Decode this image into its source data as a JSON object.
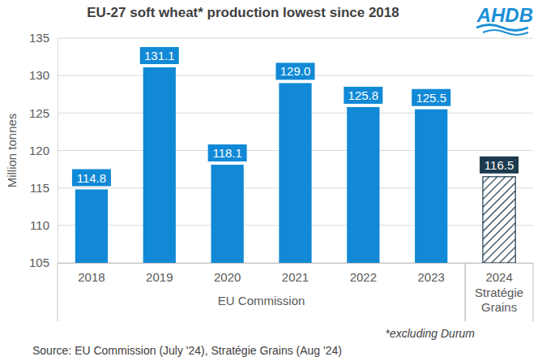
{
  "chart_data": {
    "type": "bar",
    "title": "EU-27 soft wheat* production lowest since 2018",
    "logo": "AHDB",
    "y_label": "Million tonnes",
    "categories": [
      "2018",
      "2019",
      "2020",
      "2021",
      "2022",
      "2023",
      "2024"
    ],
    "values": [
      114.8,
      131.1,
      118.1,
      129.0,
      125.8,
      125.5,
      116.5
    ],
    "value_labels": [
      "114.8",
      "131.1",
      "118.1",
      "129.0",
      "125.8",
      "125.5",
      "116.5"
    ],
    "colors": [
      "#1189d6",
      "#1189d6",
      "#1189d6",
      "#1189d6",
      "#1189d6",
      "#1189d6",
      "#1d3a4e"
    ],
    "ylim": [
      105,
      135
    ],
    "yticks": [
      105,
      110,
      115,
      120,
      125,
      130,
      135
    ],
    "grid": true,
    "data_labels": true,
    "groups": [
      {
        "label": "EU Commission",
        "categories": [
          "2018",
          "2019",
          "2020",
          "2021",
          "2022",
          "2023"
        ]
      },
      {
        "label": "Stratégie Grains",
        "categories": [
          "2024"
        ]
      }
    ],
    "annotations": [
      "*excluding Durum",
      "Source: EU Commission (July '24), Stratégie Grains (Aug '24)"
    ]
  }
}
